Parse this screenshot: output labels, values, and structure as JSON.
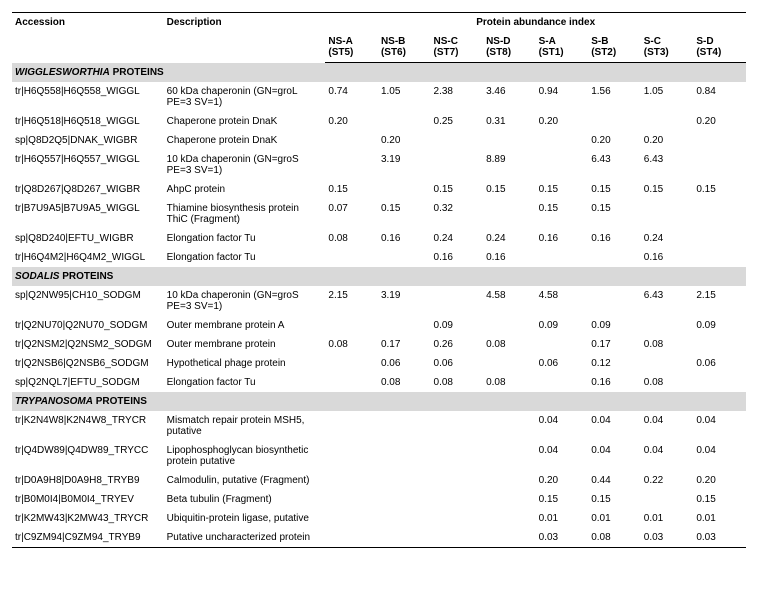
{
  "headers": {
    "accession": "Accession",
    "description": "Description",
    "super": "Protein abundance index",
    "cols": [
      {
        "top": "NS-A",
        "sub": "(ST5)"
      },
      {
        "top": "NS-B",
        "sub": "(ST6)"
      },
      {
        "top": "NS-C",
        "sub": "(ST7)"
      },
      {
        "top": "NS-D",
        "sub": "(ST8)"
      },
      {
        "top": "S-A",
        "sub": "(ST1)"
      },
      {
        "top": "S-B",
        "sub": "(ST2)"
      },
      {
        "top": "S-C",
        "sub": "(ST3)"
      },
      {
        "top": "S-D",
        "sub": "(ST4)"
      }
    ]
  },
  "sections": [
    {
      "title_italic": "WIGGLESWORTHIA",
      "title_plain": " PROTEINS",
      "rows": [
        {
          "acc": "tr|H6Q558|H6Q558_WIGGL",
          "desc": "60 kDa chaperonin (GN=groL PE=3 SV=1)",
          "v": [
            "0.74",
            "1.05",
            "2.38",
            "3.46",
            "0.94",
            "1.56",
            "1.05",
            "0.84"
          ]
        },
        {
          "acc": "tr|H6Q518|H6Q518_WIGGL",
          "desc": "Chaperone protein DnaK",
          "v": [
            "0.20",
            "",
            "0.25",
            "0.31",
            "0.20",
            "",
            "",
            "0.20"
          ]
        },
        {
          "acc": "sp|Q8D2Q5|DNAK_WIGBR",
          "desc": "Chaperone protein DnaK",
          "v": [
            "",
            "0.20",
            "",
            "",
            "",
            "0.20",
            "0.20",
            ""
          ]
        },
        {
          "acc": "tr|H6Q557|H6Q557_WIGGL",
          "desc": "10 kDa chaperonin (GN=groS PE=3 SV=1)",
          "v": [
            "",
            "3.19",
            "",
            "8.89",
            "",
            "6.43",
            "6.43",
            ""
          ]
        },
        {
          "acc": "tr|Q8D267|Q8D267_WIGBR",
          "desc": "AhpC protein",
          "v": [
            "0.15",
            "",
            "0.15",
            "0.15",
            "0.15",
            "0.15",
            "0.15",
            "0.15"
          ]
        },
        {
          "acc": "tr|B7U9A5|B7U9A5_WIGGL",
          "desc": "Thiamine biosynthesis protein ThiC (Fragment)",
          "v": [
            "0.07",
            "0.15",
            "0.32",
            "",
            "0.15",
            "0.15",
            "",
            ""
          ]
        },
        {
          "acc": "sp|Q8D240|EFTU_WIGBR",
          "desc": "Elongation factor Tu",
          "v": [
            "0.08",
            "0.16",
            "0.24",
            "0.24",
            "0.16",
            "0.16",
            "0.24",
            ""
          ]
        },
        {
          "acc": "tr|H6Q4M2|H6Q4M2_WIGGL",
          "desc": "Elongation factor Tu",
          "v": [
            "",
            "",
            "0.16",
            "0.16",
            "",
            "",
            "0.16",
            ""
          ]
        }
      ]
    },
    {
      "title_italic": "SODALIS",
      "title_plain": " PROTEINS",
      "rows": [
        {
          "acc": "sp|Q2NW95|CH10_SODGM",
          "desc": "10 kDa chaperonin (GN=groS PE=3 SV=1)",
          "v": [
            "2.15",
            "3.19",
            "",
            "4.58",
            "4.58",
            "",
            "6.43",
            "2.15"
          ]
        },
        {
          "acc": "tr|Q2NU70|Q2NU70_SODGM",
          "desc": "Outer membrane protein A",
          "v": [
            "",
            "",
            "0.09",
            "",
            "0.09",
            "0.09",
            "",
            "0.09"
          ]
        },
        {
          "acc": "tr|Q2NSM2|Q2NSM2_SODGM",
          "desc": "Outer membrane protein",
          "v": [
            "0.08",
            "0.17",
            "0.26",
            "0.08",
            "",
            "0.17",
            "0.08",
            ""
          ]
        },
        {
          "acc": "tr|Q2NSB6|Q2NSB6_SODGM",
          "desc": "Hypothetical phage protein",
          "v": [
            "",
            "0.06",
            "0.06",
            "",
            "0.06",
            "0.12",
            "",
            "0.06"
          ]
        },
        {
          "acc": "sp|Q2NQL7|EFTU_SODGM",
          "desc": "Elongation factor Tu",
          "v": [
            "",
            "0.08",
            "0.08",
            "0.08",
            "",
            "0.16",
            "0.08",
            ""
          ]
        }
      ]
    },
    {
      "title_italic": "TRYPANOSOMA",
      "title_plain": " PROTEINS",
      "rows": [
        {
          "acc": "tr|K2N4W8|K2N4W8_TRYCR",
          "desc": "Mismatch repair protein MSH5, putative",
          "v": [
            "",
            "",
            "",
            "",
            "0.04",
            "0.04",
            "0.04",
            "0.04"
          ]
        },
        {
          "acc": "tr|Q4DW89|Q4DW89_TRYCC",
          "desc": "Lipophosphoglycan biosynthetic protein putative",
          "v": [
            "",
            "",
            "",
            "",
            "0.04",
            "0.04",
            "0.04",
            "0.04"
          ]
        },
        {
          "acc": "tr|D0A9H8|D0A9H8_TRYB9",
          "desc": "Calmodulin, putative (Fragment)",
          "v": [
            "",
            "",
            "",
            "",
            "0.20",
            "0.44",
            "0.22",
            "0.20"
          ]
        },
        {
          "acc": "tr|B0M0I4|B0M0I4_TRYEV",
          "desc": "Beta tubulin (Fragment)",
          "v": [
            "",
            "",
            "",
            "",
            "0.15",
            "0.15",
            "",
            "0.15"
          ]
        },
        {
          "acc": "tr|K2MW43|K2MW43_TRYCR",
          "desc": "Ubiquitin-protein ligase, putative",
          "v": [
            "",
            "",
            "",
            "",
            "0.01",
            "0.01",
            "0.01",
            "0.01"
          ]
        },
        {
          "acc": "tr|C9ZM94|C9ZM94_TRYB9",
          "desc": "Putative uncharacterized protein",
          "v": [
            "",
            "",
            "",
            "",
            "0.03",
            "0.08",
            "0.03",
            "0.03"
          ]
        }
      ]
    }
  ]
}
